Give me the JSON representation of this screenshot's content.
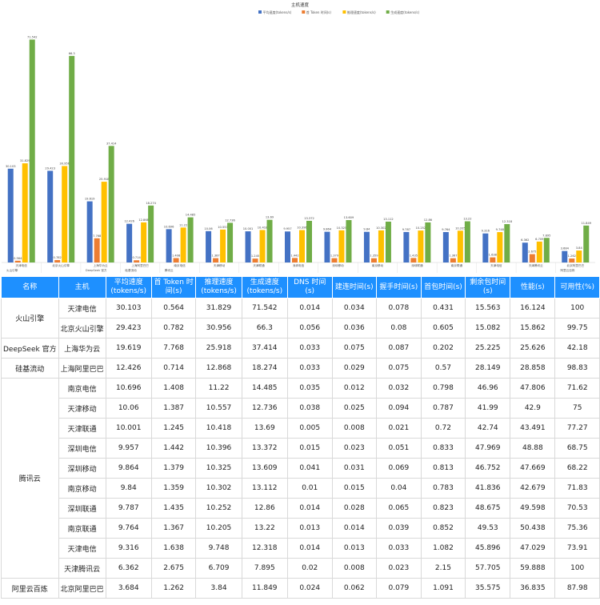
{
  "chart_data": {
    "type": "bar",
    "title": "主机速度",
    "legend_position": "top",
    "ylim": [
      0,
      75
    ],
    "grid": false,
    "series": [
      {
        "name": "平均速度(tokens/s)",
        "color": "#4472c4"
      },
      {
        "name": "首 Token 时间(s)",
        "color": "#ed7d31"
      },
      {
        "name": "推理速度(tokens/s)",
        "color": "#ffc000"
      },
      {
        "name": "生成速度(tokens/s)",
        "color": "#70ad47"
      }
    ],
    "categories": [
      {
        "host": "天津电信",
        "vendor": "火山引擎",
        "values": [
          30.103,
          0.564,
          31.829,
          71.542
        ]
      },
      {
        "host": "北京火山引擎",
        "vendor": "",
        "values": [
          29.423,
          0.782,
          30.956,
          66.3
        ]
      },
      {
        "host": "上海华为云",
        "vendor": "DeepSeek 官方",
        "values": [
          19.619,
          7.768,
          25.918,
          37.414
        ]
      },
      {
        "host": "上海阿里巴巴",
        "vendor": "硅基流动",
        "values": [
          12.426,
          0.714,
          12.868,
          18.274
        ]
      },
      {
        "host": "南京电信",
        "vendor": "腾讯云",
        "values": [
          10.696,
          1.408,
          11.22,
          14.485
        ]
      },
      {
        "host": "天津移动",
        "vendor": "",
        "values": [
          10.06,
          1.387,
          10.557,
          12.736
        ]
      },
      {
        "host": "天津联通",
        "vendor": "",
        "values": [
          10.001,
          1.245,
          10.418,
          13.69
        ]
      },
      {
        "host": "深圳电信",
        "vendor": "",
        "values": [
          9.957,
          1.442,
          10.396,
          13.372
        ]
      },
      {
        "host": "深圳移动",
        "vendor": "",
        "values": [
          9.864,
          1.379,
          10.325,
          13.609
        ]
      },
      {
        "host": "南京移动",
        "vendor": "",
        "values": [
          9.84,
          1.359,
          10.302,
          13.112
        ]
      },
      {
        "host": "深圳联通",
        "vendor": "",
        "values": [
          9.787,
          1.435,
          10.252,
          12.86
        ]
      },
      {
        "host": "南京联通",
        "vendor": "",
        "values": [
          9.764,
          1.367,
          10.205,
          13.22
        ]
      },
      {
        "host": "天津电信",
        "vendor": "",
        "values": [
          9.316,
          1.638,
          9.748,
          12.318
        ]
      },
      {
        "host": "天津腾讯云",
        "vendor": "",
        "values": [
          6.362,
          2.675,
          6.709,
          7.895
        ]
      },
      {
        "host": "北京阿里巴巴",
        "vendor": "阿里云百炼",
        "values": [
          3.684,
          1.262,
          3.84,
          11.849
        ]
      }
    ]
  },
  "table": {
    "headers": [
      "名称",
      "主机",
      "平均速度(tokens/s)",
      "首 Token 时间(s)",
      "推理速度(tokens/s)",
      "生成速度(tokens/s)",
      "DNS 时间(s)",
      "建连时间(s)",
      "握手时间(s)",
      "首包时间(s)",
      "剩余包时间(s)",
      "性能(s)",
      "可用性(%)"
    ],
    "groups": [
      {
        "name": "火山引擎",
        "rows": [
          [
            "天津电信",
            "30.103",
            "0.564",
            "31.829",
            "71.542",
            "0.014",
            "0.034",
            "0.078",
            "0.431",
            "15.563",
            "16.124",
            "100"
          ],
          [
            "北京火山引擎",
            "29.423",
            "0.782",
            "30.956",
            "66.3",
            "0.056",
            "0.036",
            "0.08",
            "0.605",
            "15.082",
            "15.862",
            "99.75"
          ]
        ]
      },
      {
        "name": "DeepSeek 官方",
        "rows": [
          [
            "上海华为云",
            "19.619",
            "7.768",
            "25.918",
            "37.414",
            "0.033",
            "0.075",
            "0.087",
            "0.202",
            "25.225",
            "25.626",
            "42.18"
          ]
        ]
      },
      {
        "name": "硅基流动",
        "rows": [
          [
            "上海阿里巴巴",
            "12.426",
            "0.714",
            "12.868",
            "18.274",
            "0.033",
            "0.029",
            "0.075",
            "0.57",
            "28.149",
            "28.858",
            "98.83"
          ]
        ]
      },
      {
        "name": "腾讯云",
        "rows": [
          [
            "南京电信",
            "10.696",
            "1.408",
            "11.22",
            "14.485",
            "0.035",
            "0.012",
            "0.032",
            "0.798",
            "46.96",
            "47.806",
            "71.62"
          ],
          [
            "天津移动",
            "10.06",
            "1.387",
            "10.557",
            "12.736",
            "0.038",
            "0.025",
            "0.094",
            "0.787",
            "41.99",
            "42.9",
            "75"
          ],
          [
            "天津联通",
            "10.001",
            "1.245",
            "10.418",
            "13.69",
            "0.005",
            "0.008",
            "0.021",
            "0.72",
            "42.74",
            "43.491",
            "77.27"
          ],
          [
            "深圳电信",
            "9.957",
            "1.442",
            "10.396",
            "13.372",
            "0.015",
            "0.023",
            "0.051",
            "0.833",
            "47.969",
            "48.88",
            "68.75"
          ],
          [
            "深圳移动",
            "9.864",
            "1.379",
            "10.325",
            "13.609",
            "0.041",
            "0.031",
            "0.069",
            "0.813",
            "46.752",
            "47.669",
            "68.22"
          ],
          [
            "南京移动",
            "9.84",
            "1.359",
            "10.302",
            "13.112",
            "0.01",
            "0.015",
            "0.04",
            "0.783",
            "41.836",
            "42.679",
            "71.83"
          ],
          [
            "深圳联通",
            "9.787",
            "1.435",
            "10.252",
            "12.86",
            "0.014",
            "0.028",
            "0.065",
            "0.823",
            "48.675",
            "49.598",
            "70.53"
          ],
          [
            "南京联通",
            "9.764",
            "1.367",
            "10.205",
            "13.22",
            "0.013",
            "0.014",
            "0.039",
            "0.852",
            "49.53",
            "50.438",
            "75.36"
          ],
          [
            "天津电信",
            "9.316",
            "1.638",
            "9.748",
            "12.318",
            "0.014",
            "0.013",
            "0.033",
            "1.082",
            "45.896",
            "47.029",
            "73.91"
          ],
          [
            "天津腾讯云",
            "6.362",
            "2.675",
            "6.709",
            "7.895",
            "0.02",
            "0.008",
            "0.023",
            "2.15",
            "57.705",
            "59.888",
            "100"
          ]
        ]
      },
      {
        "name": "阿里云百炼",
        "rows": [
          [
            "北京阿里巴巴",
            "3.684",
            "1.262",
            "3.84",
            "11.849",
            "0.024",
            "0.062",
            "0.079",
            "1.091",
            "35.575",
            "36.835",
            "87.98"
          ]
        ]
      }
    ]
  }
}
